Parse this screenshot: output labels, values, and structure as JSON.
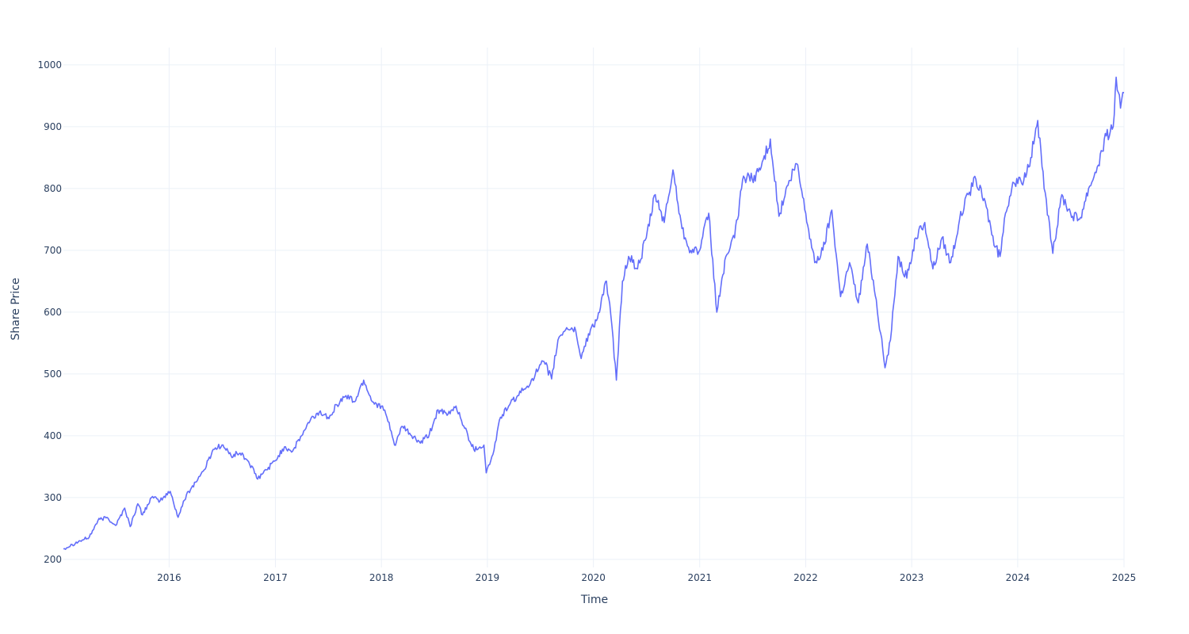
{
  "chart_data": {
    "type": "line",
    "title": "",
    "xlabel": "Time",
    "ylabel": "Share Price",
    "x_range": [
      "2015-01-02",
      "2025-01-01"
    ],
    "ylim": [
      187,
      1028
    ],
    "x_ticks": [
      {
        "date": "2016-01-01",
        "label": "2016"
      },
      {
        "date": "2017-01-01",
        "label": "2017"
      },
      {
        "date": "2018-01-01",
        "label": "2018"
      },
      {
        "date": "2019-01-01",
        "label": "2019"
      },
      {
        "date": "2020-01-01",
        "label": "2020"
      },
      {
        "date": "2021-01-01",
        "label": "2021"
      },
      {
        "date": "2022-01-01",
        "label": "2022"
      },
      {
        "date": "2023-01-01",
        "label": "2023"
      },
      {
        "date": "2024-01-01",
        "label": "2024"
      },
      {
        "date": "2025-01-01",
        "label": "2025"
      }
    ],
    "y_ticks": [
      200,
      300,
      400,
      500,
      600,
      700,
      800,
      900,
      1000
    ],
    "grid": true,
    "legend": "none",
    "series": [
      {
        "color": "#636efa",
        "points": [
          [
            "2015-01-02",
            217
          ],
          [
            "2015-02-01",
            224
          ],
          [
            "2015-03-01",
            230
          ],
          [
            "2015-04-01",
            236
          ],
          [
            "2015-05-01",
            263
          ],
          [
            "2015-06-01",
            268
          ],
          [
            "2015-07-01",
            255
          ],
          [
            "2015-08-01",
            283
          ],
          [
            "2015-08-20",
            253
          ],
          [
            "2015-09-15",
            290
          ],
          [
            "2015-10-01",
            272
          ],
          [
            "2015-11-01",
            300
          ],
          [
            "2015-12-01",
            295
          ],
          [
            "2016-01-05",
            310
          ],
          [
            "2016-02-01",
            268
          ],
          [
            "2016-03-01",
            305
          ],
          [
            "2016-04-01",
            325
          ],
          [
            "2016-05-01",
            345
          ],
          [
            "2016-06-01",
            378
          ],
          [
            "2016-07-01",
            385
          ],
          [
            "2016-08-01",
            368
          ],
          [
            "2016-09-01",
            372
          ],
          [
            "2016-10-01",
            358
          ],
          [
            "2016-11-01",
            330
          ],
          [
            "2016-12-01",
            345
          ],
          [
            "2017-01-01",
            360
          ],
          [
            "2017-02-01",
            382
          ],
          [
            "2017-03-01",
            375
          ],
          [
            "2017-04-01",
            400
          ],
          [
            "2017-05-01",
            425
          ],
          [
            "2017-06-01",
            438
          ],
          [
            "2017-07-01",
            430
          ],
          [
            "2017-08-01",
            450
          ],
          [
            "2017-09-01",
            465
          ],
          [
            "2017-10-01",
            455
          ],
          [
            "2017-11-01",
            490
          ],
          [
            "2017-12-01",
            455
          ],
          [
            "2018-01-01",
            448
          ],
          [
            "2018-01-20",
            430
          ],
          [
            "2018-02-15",
            385
          ],
          [
            "2018-03-15",
            415
          ],
          [
            "2018-04-15",
            400
          ],
          [
            "2018-05-15",
            388
          ],
          [
            "2018-06-15",
            402
          ],
          [
            "2018-07-15",
            442
          ],
          [
            "2018-08-15",
            433
          ],
          [
            "2018-09-15",
            448
          ],
          [
            "2018-10-15",
            412
          ],
          [
            "2018-11-15",
            378
          ],
          [
            "2018-12-20",
            385
          ],
          [
            "2018-12-28",
            340
          ],
          [
            "2019-01-20",
            370
          ],
          [
            "2019-02-15",
            430
          ],
          [
            "2019-03-15",
            448
          ],
          [
            "2019-04-15",
            465
          ],
          [
            "2019-05-15",
            478
          ],
          [
            "2019-06-15",
            500
          ],
          [
            "2019-07-15",
            520
          ],
          [
            "2019-08-10",
            492
          ],
          [
            "2019-09-01",
            555
          ],
          [
            "2019-10-01",
            575
          ],
          [
            "2019-11-01",
            570
          ],
          [
            "2019-11-20",
            525
          ],
          [
            "2019-12-15",
            565
          ],
          [
            "2020-01-15",
            590
          ],
          [
            "2020-02-15",
            650
          ],
          [
            "2020-03-01",
            595
          ],
          [
            "2020-03-20",
            490
          ],
          [
            "2020-04-10",
            650
          ],
          [
            "2020-05-01",
            690
          ],
          [
            "2020-06-01",
            670
          ],
          [
            "2020-07-01",
            720
          ],
          [
            "2020-08-01",
            790
          ],
          [
            "2020-09-01",
            745
          ],
          [
            "2020-10-01",
            830
          ],
          [
            "2020-11-01",
            735
          ],
          [
            "2020-12-01",
            700
          ],
          [
            "2021-01-01",
            700
          ],
          [
            "2021-02-01",
            760
          ],
          [
            "2021-03-01",
            600
          ],
          [
            "2021-04-01",
            690
          ],
          [
            "2021-05-01",
            720
          ],
          [
            "2021-06-01",
            820
          ],
          [
            "2021-07-01",
            815
          ],
          [
            "2021-08-01",
            835
          ],
          [
            "2021-09-01",
            880
          ],
          [
            "2021-10-01",
            755
          ],
          [
            "2021-11-01",
            805
          ],
          [
            "2021-12-01",
            840
          ],
          [
            "2022-01-01",
            760
          ],
          [
            "2022-02-01",
            680
          ],
          [
            "2022-03-01",
            700
          ],
          [
            "2022-04-01",
            765
          ],
          [
            "2022-05-01",
            625
          ],
          [
            "2022-06-01",
            680
          ],
          [
            "2022-07-01",
            615
          ],
          [
            "2022-08-01",
            710
          ],
          [
            "2022-09-01",
            620
          ],
          [
            "2022-10-01",
            510
          ],
          [
            "2022-10-20",
            555
          ],
          [
            "2022-11-15",
            690
          ],
          [
            "2022-12-15",
            655
          ],
          [
            "2023-01-15",
            720
          ],
          [
            "2023-02-15",
            745
          ],
          [
            "2023-03-15",
            670
          ],
          [
            "2023-04-15",
            720
          ],
          [
            "2023-05-15",
            680
          ],
          [
            "2023-06-15",
            750
          ],
          [
            "2023-07-15",
            790
          ],
          [
            "2023-08-10",
            815
          ],
          [
            "2023-09-15",
            770
          ],
          [
            "2023-10-15",
            705
          ],
          [
            "2023-11-01",
            690
          ],
          [
            "2023-11-20",
            760
          ],
          [
            "2023-12-15",
            810
          ],
          [
            "2024-01-15",
            808
          ],
          [
            "2024-02-15",
            850
          ],
          [
            "2024-03-10",
            910
          ],
          [
            "2024-04-01",
            800
          ],
          [
            "2024-05-01",
            695
          ],
          [
            "2024-06-01",
            790
          ],
          [
            "2024-07-01",
            760
          ],
          [
            "2024-08-01",
            750
          ],
          [
            "2024-09-01",
            800
          ],
          [
            "2024-10-01",
            835
          ],
          [
            "2024-11-01",
            885
          ],
          [
            "2024-11-25",
            900
          ],
          [
            "2024-12-05",
            980
          ],
          [
            "2024-12-20",
            930
          ],
          [
            "2025-01-01",
            955
          ]
        ]
      }
    ]
  }
}
